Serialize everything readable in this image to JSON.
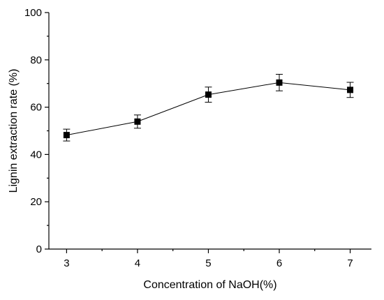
{
  "chart_data": {
    "type": "line",
    "title": "",
    "xlabel": "Concentration of NaOH(%)",
    "ylabel": "Lignin extraction rate (%)",
    "x": [
      3,
      4,
      5,
      6,
      7
    ],
    "xlim": [
      2.75,
      7.3
    ],
    "ylim": [
      0,
      100
    ],
    "xticks": [
      3,
      4,
      5,
      6,
      7
    ],
    "yticks": [
      0,
      20,
      40,
      60,
      80,
      100
    ],
    "grid": false,
    "legend": "none",
    "series": [
      {
        "values": [
          48.2,
          53.9,
          65.3,
          70.4,
          67.3
        ],
        "errors": [
          2.5,
          2.8,
          3.2,
          3.5,
          3.2
        ],
        "marker": "square",
        "color": "#000000"
      }
    ]
  }
}
